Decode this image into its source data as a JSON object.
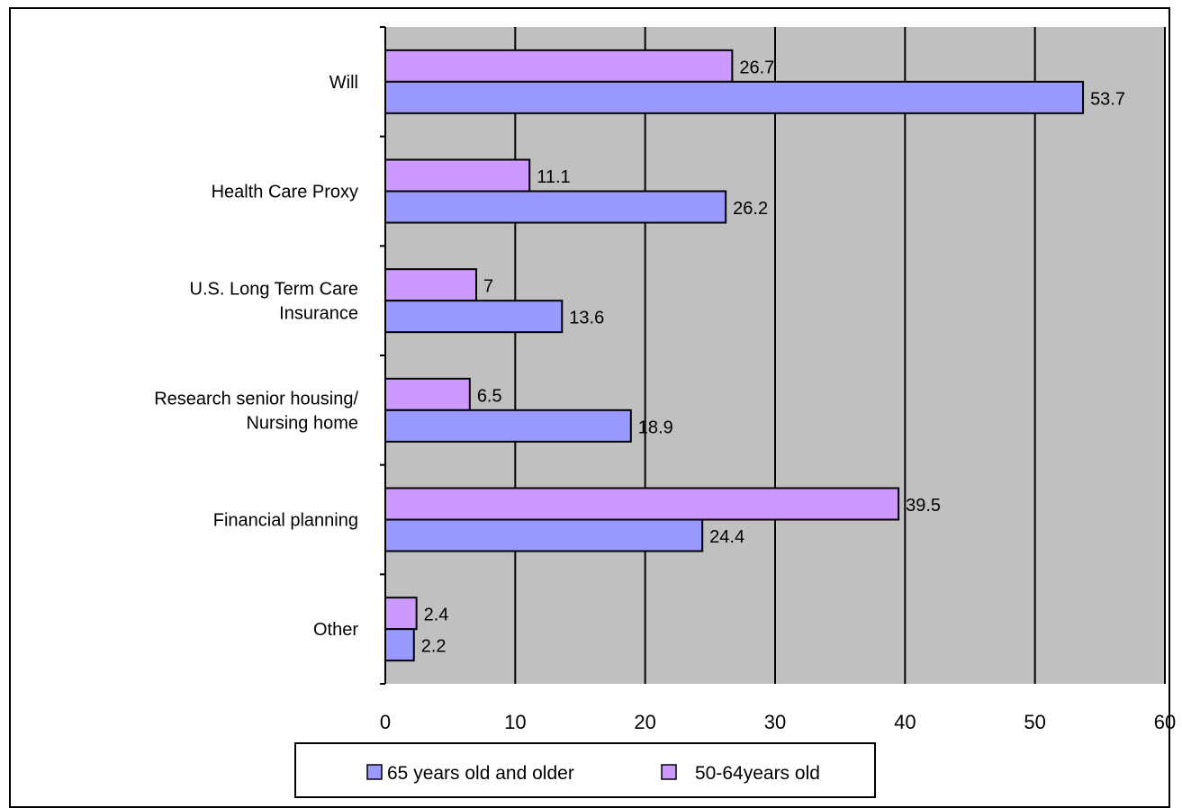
{
  "chart_data": {
    "type": "bar",
    "orientation": "horizontal",
    "categories": [
      "Will",
      "Health Care Proxy",
      "U.S. Long Term Care Insurance",
      "Research senior housing/ Nursing home",
      "Financial planning",
      "Other"
    ],
    "category_lines": [
      [
        "Will"
      ],
      [
        "Health Care Proxy"
      ],
      [
        "U.S. Long Term Care",
        "Insurance"
      ],
      [
        "Research senior housing/",
        "Nursing home"
      ],
      [
        "Financial planning"
      ],
      [
        "Other"
      ]
    ],
    "series": [
      {
        "name": "50-64years old",
        "color": "#cc99ff",
        "values": [
          26.7,
          11.1,
          7,
          6.5,
          39.5,
          2.4
        ]
      },
      {
        "name": "65 years old and older",
        "color": "#9999ff",
        "values": [
          53.7,
          26.2,
          13.6,
          18.9,
          24.4,
          2.2
        ]
      }
    ],
    "data_labels": [
      [
        "26.7",
        "11.1",
        "7",
        "6.5",
        "39.5",
        "2.4"
      ],
      [
        "53.7",
        "26.2",
        "13.6",
        "18.9",
        "24.4",
        "2.2"
      ]
    ],
    "xlim": [
      0,
      60
    ],
    "ticks": [
      "0",
      "10",
      "20",
      "30",
      "40",
      "50",
      "60"
    ],
    "grid": true,
    "plot_background": "#c0c0c0",
    "legend_placement": "bottom",
    "legend": [
      {
        "label": "65 years old and older",
        "color": "#9999ff"
      },
      {
        "label": "50-64years old",
        "color": "#cc99ff"
      }
    ]
  }
}
